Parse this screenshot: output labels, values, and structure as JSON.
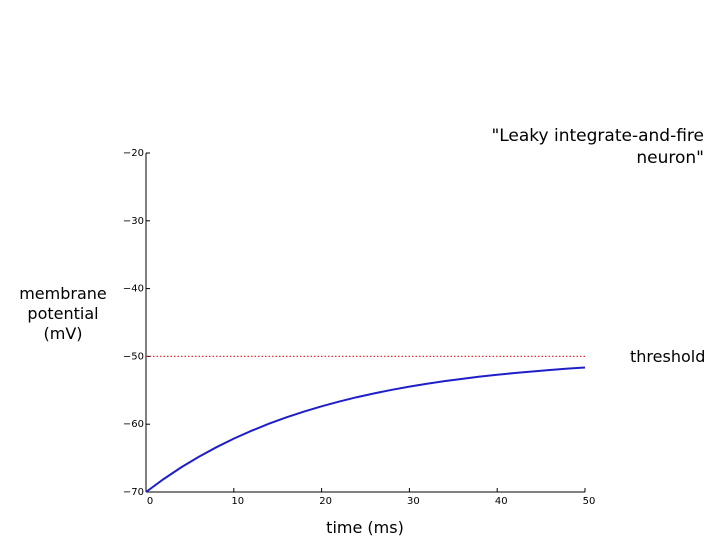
{
  "chart_data": {
    "type": "line",
    "title": "\"Leaky integrate-and-fire neuron\"",
    "xlabel": "time (ms)",
    "ylabel": "membrane potential (mV)",
    "x": [
      0,
      2,
      4,
      6,
      8,
      10,
      12,
      14,
      16,
      18,
      20,
      22,
      24,
      26,
      28,
      30,
      32,
      34,
      36,
      38,
      40,
      42,
      44,
      46,
      48,
      50
    ],
    "series": [
      {
        "color": "#1f1fc8",
        "values": [
          -70,
          -68.1,
          -66.37,
          -64.82,
          -63.41,
          -62.13,
          -60.98,
          -59.93,
          -58.99,
          -58.13,
          -57.36,
          -56.66,
          -56.02,
          -55.45,
          -54.93,
          -54.46,
          -54.04,
          -53.65,
          -53.31,
          -52.99,
          -52.71,
          -52.45,
          -52.22,
          -52.01,
          -51.81,
          -51.64
        ]
      }
    ],
    "threshold": {
      "value": -50,
      "label": "threshold",
      "color": "#e03030"
    },
    "xlim": [
      0,
      50
    ],
    "xticks": [
      0,
      10,
      20,
      30,
      40,
      50
    ],
    "ylim": [
      -70,
      -20
    ],
    "yticks": [
      {
        "value": -70,
        "label": "−70"
      },
      {
        "value": -60,
        "label": "−60"
      },
      {
        "value": -50,
        "label": "−50"
      },
      {
        "value": -40,
        "label": "−40"
      },
      {
        "value": -30,
        "label": "−30"
      },
      {
        "value": -20,
        "label": "−20"
      }
    ],
    "grid": false
  }
}
